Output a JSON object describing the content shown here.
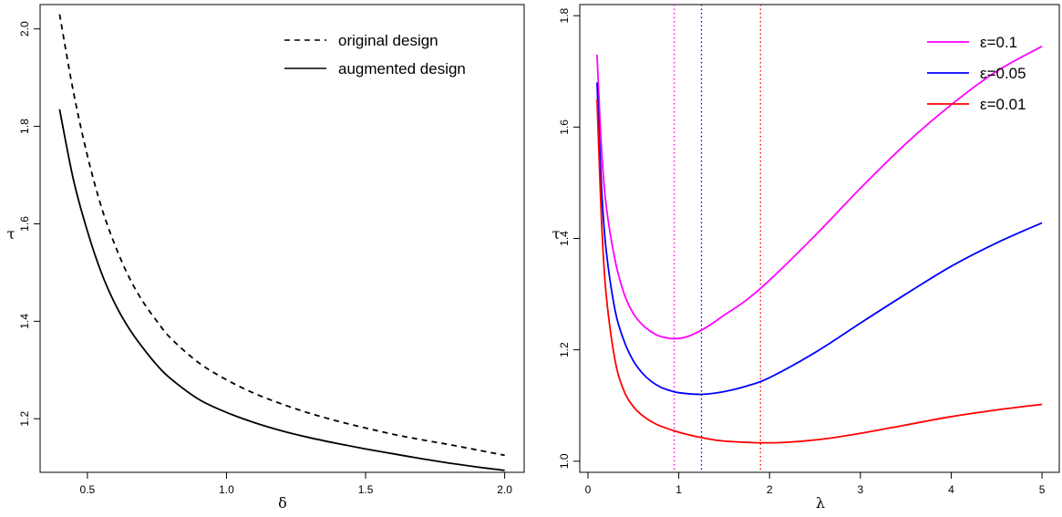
{
  "chart_data": [
    {
      "type": "line",
      "xlabel": "δ",
      "ylabel": "τ",
      "xlim": [
        0.33,
        2.07
      ],
      "ylim": [
        1.09,
        2.05
      ],
      "xticks": [
        "0.5",
        "1.0",
        "1.5",
        "2.0"
      ],
      "xtick_values": [
        0.5,
        1.0,
        1.5,
        2.0
      ],
      "yticks": [
        "1.2",
        "1.4",
        "1.6",
        "1.8",
        "2.0"
      ],
      "ytick_values": [
        1.2,
        1.4,
        1.6,
        1.8,
        2.0
      ],
      "legend_position": "top-right",
      "grid": false,
      "series": [
        {
          "name": "original design",
          "line_style": "dashed",
          "color": "#000000",
          "x": [
            0.4,
            0.45,
            0.5,
            0.55,
            0.6,
            0.65,
            0.7,
            0.75,
            0.8,
            0.9,
            1.0,
            1.1,
            1.2,
            1.3,
            1.4,
            1.5,
            1.6,
            1.7,
            1.8,
            1.9,
            2.0
          ],
          "y": [
            2.03,
            1.87,
            1.74,
            1.635,
            1.555,
            1.49,
            1.44,
            1.4,
            1.365,
            1.315,
            1.28,
            1.252,
            1.23,
            1.211,
            1.195,
            1.181,
            1.168,
            1.157,
            1.147,
            1.136,
            1.125
          ]
        },
        {
          "name": "augmented design",
          "line_style": "solid",
          "color": "#000000",
          "x": [
            0.4,
            0.45,
            0.5,
            0.55,
            0.6,
            0.65,
            0.7,
            0.75,
            0.8,
            0.9,
            1.0,
            1.1,
            1.2,
            1.3,
            1.4,
            1.5,
            1.6,
            1.7,
            1.8,
            1.9,
            2.0
          ],
          "y": [
            1.835,
            1.69,
            1.585,
            1.5,
            1.435,
            1.385,
            1.345,
            1.31,
            1.282,
            1.24,
            1.213,
            1.192,
            1.175,
            1.161,
            1.149,
            1.138,
            1.128,
            1.118,
            1.109,
            1.101,
            1.094
          ]
        }
      ]
    },
    {
      "type": "line",
      "xlabel": "λ",
      "ylabel": "τ",
      "xlim": [
        -0.09,
        5.19
      ],
      "ylim": [
        0.98,
        1.82
      ],
      "xticks": [
        "0",
        "1",
        "2",
        "3",
        "4",
        "5"
      ],
      "xtick_values": [
        0,
        1,
        2,
        3,
        4,
        5
      ],
      "yticks": [
        "1.0",
        "1.2",
        "1.4",
        "1.6",
        "1.8"
      ],
      "ytick_values": [
        1.0,
        1.2,
        1.4,
        1.6,
        1.8
      ],
      "legend_position": "top-right",
      "grid": false,
      "series": [
        {
          "name": "ε=0.1",
          "color": "#ff00ff",
          "vline_x": 0.95,
          "x": [
            0.1,
            0.15,
            0.2,
            0.3,
            0.4,
            0.5,
            0.6,
            0.7,
            0.8,
            0.95,
            1.1,
            1.3,
            1.5,
            1.75,
            2.0,
            2.5,
            3.0,
            3.5,
            4.0,
            4.5,
            5.0
          ],
          "y": [
            1.73,
            1.56,
            1.46,
            1.36,
            1.3,
            1.265,
            1.245,
            1.232,
            1.224,
            1.22,
            1.224,
            1.24,
            1.262,
            1.29,
            1.325,
            1.405,
            1.49,
            1.57,
            1.64,
            1.7,
            1.745
          ]
        },
        {
          "name": "ε=0.05",
          "color": "#0000ff",
          "vline_x": 1.25,
          "x": [
            0.1,
            0.15,
            0.2,
            0.3,
            0.4,
            0.5,
            0.6,
            0.7,
            0.8,
            0.9,
            1.0,
            1.25,
            1.5,
            1.75,
            2.0,
            2.5,
            3.0,
            3.5,
            4.0,
            4.5,
            5.0
          ],
          "y": [
            1.68,
            1.49,
            1.38,
            1.27,
            1.215,
            1.18,
            1.158,
            1.143,
            1.133,
            1.127,
            1.123,
            1.12,
            1.125,
            1.135,
            1.15,
            1.195,
            1.248,
            1.3,
            1.35,
            1.392,
            1.428
          ]
        },
        {
          "name": "ε=0.01",
          "color": "#ff0000",
          "vline_x": 1.9,
          "x": [
            0.1,
            0.15,
            0.2,
            0.3,
            0.4,
            0.5,
            0.6,
            0.7,
            0.8,
            1.0,
            1.2,
            1.4,
            1.6,
            1.9,
            2.2,
            2.6,
            3.0,
            3.5,
            4.0,
            4.5,
            5.0
          ],
          "y": [
            1.65,
            1.43,
            1.3,
            1.18,
            1.125,
            1.098,
            1.082,
            1.071,
            1.063,
            1.052,
            1.044,
            1.038,
            1.035,
            1.033,
            1.034,
            1.04,
            1.05,
            1.065,
            1.08,
            1.092,
            1.102
          ]
        }
      ]
    }
  ]
}
